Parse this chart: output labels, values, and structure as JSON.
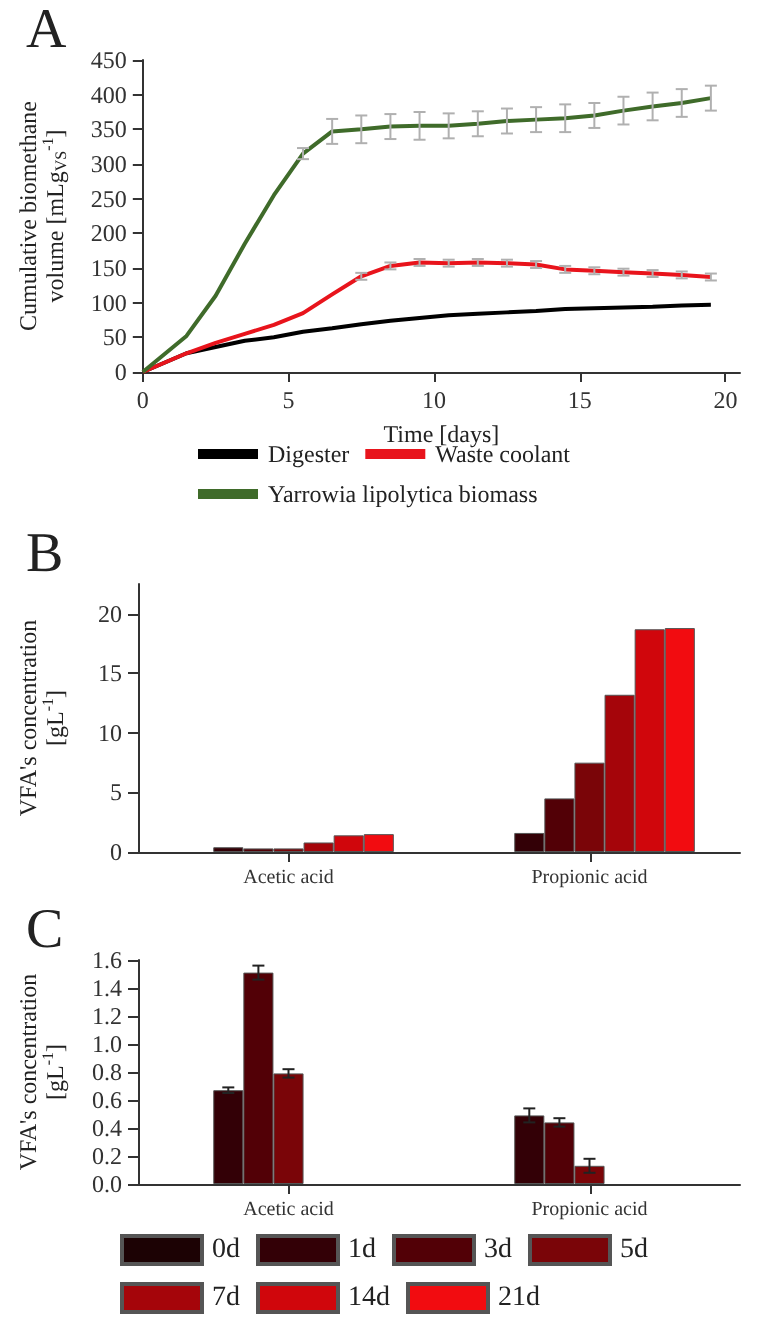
{
  "chart_data": [
    {
      "type": "line",
      "title": "A",
      "xlabel": "Time [days]",
      "ylabel": "Cumulative biomethane volume [mLg$_{VS}$$^{-1}$]",
      "xlim": [
        0,
        20.5
      ],
      "xticks": [
        0,
        5,
        10,
        15,
        20
      ],
      "ylim": [
        0,
        450
      ],
      "yticks": [
        0,
        50,
        100,
        150,
        200,
        250,
        300,
        350,
        400,
        450
      ],
      "legend": "bottom",
      "marker": "none",
      "grid": false,
      "x": [
        0,
        1.5,
        2.5,
        3.5,
        4.5,
        5.5,
        6.5,
        7.5,
        8.5,
        9.5,
        10.5,
        11.5,
        12.5,
        13.5,
        14.5,
        15.5,
        16.5,
        17.5,
        18.5,
        19.5
      ],
      "series": [
        {
          "name": "Digester",
          "color": "#000000",
          "values": [
            0,
            27,
            36,
            45,
            50,
            58,
            63,
            69,
            74,
            78,
            82,
            84,
            86,
            88,
            91,
            92,
            93,
            94,
            96,
            97
          ]
        },
        {
          "name": "Waste coolant",
          "color": "#e8141c",
          "values": [
            0,
            27,
            42,
            55,
            68,
            85,
            112,
            138,
            153,
            158,
            157,
            158,
            157,
            155,
            148,
            146,
            144,
            142,
            140,
            137
          ],
          "errors": [
            null,
            null,
            null,
            null,
            null,
            null,
            null,
            5,
            5,
            5,
            5,
            5,
            5,
            5,
            5,
            5,
            5,
            5,
            5,
            5
          ]
        },
        {
          "name": "Yarrowia lipolytica biomass",
          "color": "#3f6b2a",
          "values": [
            0,
            52,
            110,
            185,
            255,
            315,
            347,
            350,
            354,
            355,
            355,
            358,
            362,
            364,
            366,
            370,
            377,
            383,
            388,
            395
          ],
          "errors": [
            null,
            null,
            null,
            null,
            null,
            8,
            18,
            20,
            18,
            20,
            18,
            18,
            18,
            18,
            20,
            18,
            20,
            20,
            20,
            18
          ]
        }
      ]
    },
    {
      "type": "bar",
      "title": "B",
      "ylabel": "VFA's concentration [gL$^{-1}$]",
      "categories": [
        "Acetic acid",
        "Propionic acid"
      ],
      "ylim": [
        0,
        22.5
      ],
      "yticks": [
        0,
        5,
        10,
        15,
        20
      ],
      "legend": false,
      "series": [
        {
          "color": "#1c0204",
          "values": [
            null,
            null
          ]
        },
        {
          "color": "#330006",
          "values": [
            0.4,
            1.6
          ]
        },
        {
          "color": "#520006",
          "values": [
            0.3,
            4.5
          ]
        },
        {
          "color": "#7a0508",
          "values": [
            0.3,
            7.5
          ]
        },
        {
          "color": "#a5050a",
          "values": [
            0.8,
            13.2
          ]
        },
        {
          "color": "#d0060c",
          "values": [
            1.4,
            18.7
          ]
        },
        {
          "color": "#f20c10",
          "values": [
            1.5,
            18.8
          ]
        }
      ]
    },
    {
      "type": "bar",
      "title": "C",
      "ylabel": "VFA's concentration [gL$^{-1}$]",
      "categories": [
        "Acetic acid",
        "Propionic acid"
      ],
      "ylim": [
        0,
        1.6
      ],
      "yticks": [
        {
          "value": 0,
          "label": "0.0"
        },
        {
          "value": 0.2,
          "label": "0.2"
        },
        {
          "value": 0.4,
          "label": "0.4"
        },
        {
          "value": 0.6,
          "label": "0.6"
        },
        {
          "value": 0.8,
          "label": "0.8"
        },
        {
          "value": 1,
          "label": "1.0"
        },
        {
          "value": 1.2,
          "label": "1.2"
        },
        {
          "value": 1.4,
          "label": "1.4"
        },
        {
          "value": 1.6,
          "label": "1.6"
        }
      ],
      "legend": "bottom",
      "series": [
        {
          "name": "0d",
          "color": "#1c0204",
          "values": [
            null,
            null
          ]
        },
        {
          "name": "1d",
          "color": "#330006",
          "values": [
            0.67,
            0.49
          ],
          "errors": [
            0.02,
            0.05
          ]
        },
        {
          "name": "3d",
          "color": "#520006",
          "values": [
            1.51,
            0.44
          ],
          "errors": [
            0.05,
            0.03
          ]
        },
        {
          "name": "5d",
          "color": "#7a0508",
          "values": [
            0.79,
            0.13
          ],
          "errors": [
            0.03,
            0.05
          ]
        },
        {
          "name": "7d",
          "color": "#a5050a",
          "values": [
            null,
            null
          ]
        },
        {
          "name": "14d",
          "color": "#d0060c",
          "values": [
            null,
            null
          ]
        },
        {
          "name": "21d",
          "color": "#f20c10",
          "values": [
            null,
            null
          ]
        }
      ]
    }
  ]
}
